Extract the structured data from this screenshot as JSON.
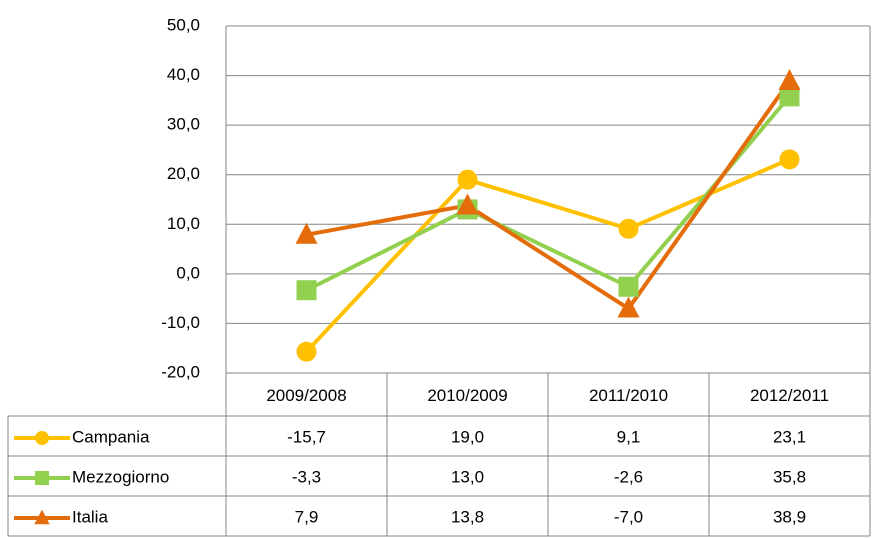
{
  "chart_data": {
    "type": "line",
    "categories": [
      "2009/2008",
      "2010/2009",
      "2011/2010",
      "2012/2011"
    ],
    "series": [
      {
        "name": "Campania",
        "color": "#FFC000",
        "marker": "circle",
        "values": [
          -15.7,
          19.0,
          9.1,
          23.1
        ],
        "value_labels": [
          "-15,7",
          "19,0",
          "9,1",
          "23,1"
        ]
      },
      {
        "name": "Mezzogiorno",
        "color": "#92D050",
        "marker": "square",
        "values": [
          -3.3,
          13.0,
          -2.6,
          35.8
        ],
        "value_labels": [
          "-3,3",
          "13,0",
          "-2,6",
          "35,8"
        ]
      },
      {
        "name": "Italia",
        "color": "#E46C0A",
        "marker": "triangle",
        "values": [
          7.9,
          13.8,
          -7.0,
          38.9
        ],
        "value_labels": [
          "7,9",
          "13,8",
          "-7,0",
          "38,9"
        ]
      }
    ],
    "ylim": [
      -20,
      50
    ],
    "yticks": [
      {
        "value": -20,
        "label": "-20,0"
      },
      {
        "value": -10,
        "label": "-10,0"
      },
      {
        "value": 0,
        "label": "0,0"
      },
      {
        "value": 10,
        "label": "10,0"
      },
      {
        "value": 20,
        "label": "20,0"
      },
      {
        "value": 30,
        "label": "30,0"
      },
      {
        "value": 40,
        "label": "40,0"
      },
      {
        "value": 50,
        "label": "50,0"
      }
    ],
    "grid": true,
    "legend": "table"
  }
}
